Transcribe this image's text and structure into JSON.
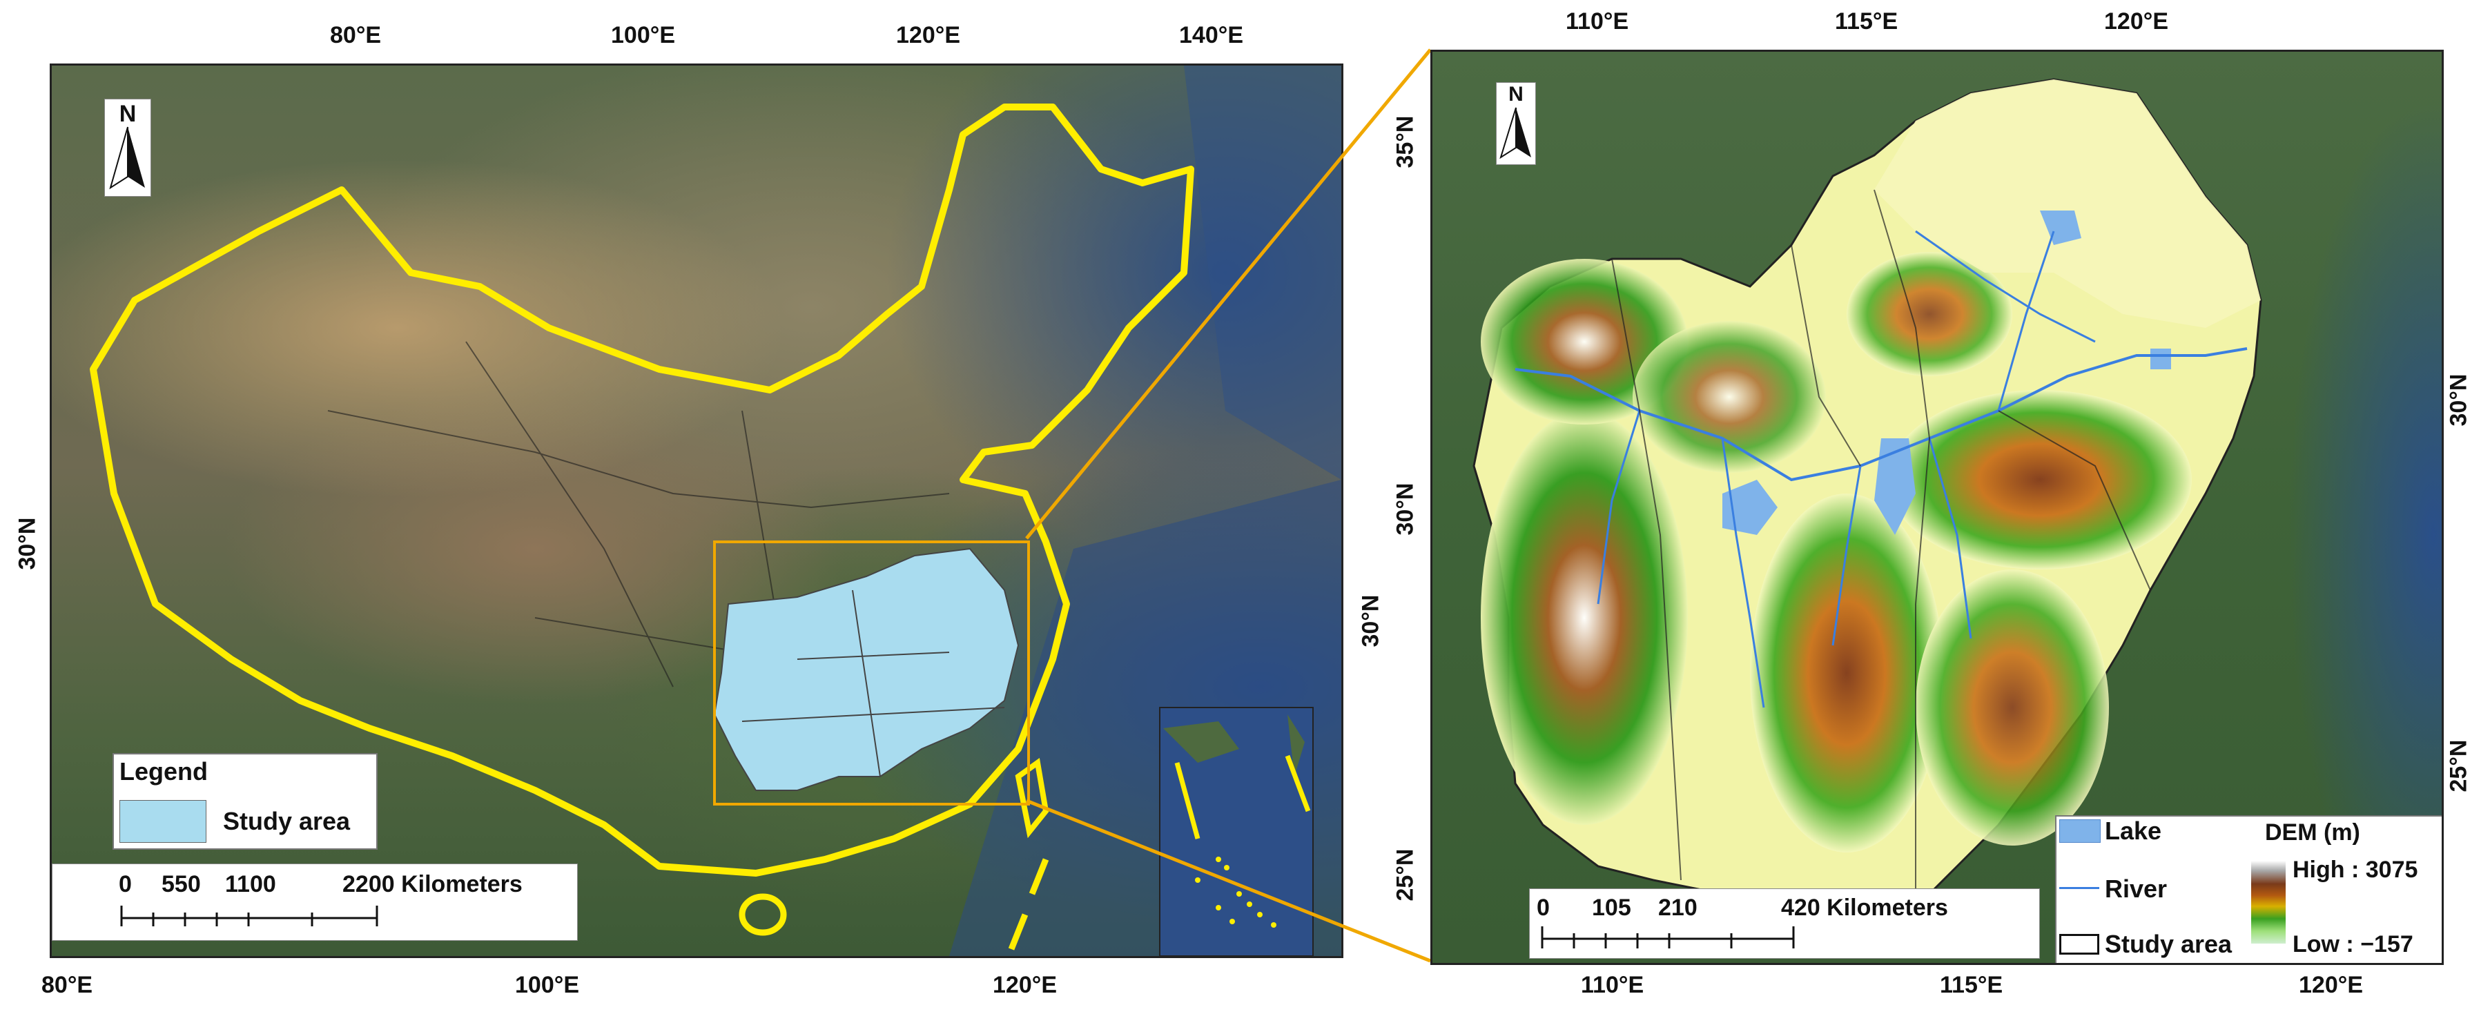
{
  "left_map": {
    "top_ticks": [
      "80°E",
      "100°E",
      "120°E",
      "140°E"
    ],
    "bottom_ticks": [
      "80°E",
      "100°E",
      "120°E"
    ],
    "left_tick": "30°N",
    "right_tick": "30°N",
    "north_letter": "N",
    "legend": {
      "title": "Legend",
      "item_label": "Study area",
      "item_color": "#a9dcef"
    },
    "scale": {
      "labels": [
        "0",
        "550",
        "1100",
        "2200 Kilometers"
      ]
    },
    "boundary_color": "#ffee00",
    "extent_box_color": "#f0a800"
  },
  "right_map": {
    "top_ticks": [
      "110°E",
      "115°E",
      "120°E"
    ],
    "bottom_ticks": [
      "110°E",
      "115°E",
      "120°E"
    ],
    "left_ticks": [
      "35°N",
      "30°N",
      "25°N"
    ],
    "right_ticks": [
      "30°N",
      "25°N"
    ],
    "north_letter": "N",
    "legend": {
      "lake_label": "Lake",
      "river_label": "River",
      "study_area_label": "Study area",
      "dem_title": "DEM (m)",
      "dem_high": "High : 3075",
      "dem_low": "Low : −157",
      "lake_color": "#7fb3ea",
      "river_color": "#3a7fe0"
    },
    "scale": {
      "labels": [
        "0",
        "105",
        "210",
        "420 Kilometers"
      ]
    }
  }
}
